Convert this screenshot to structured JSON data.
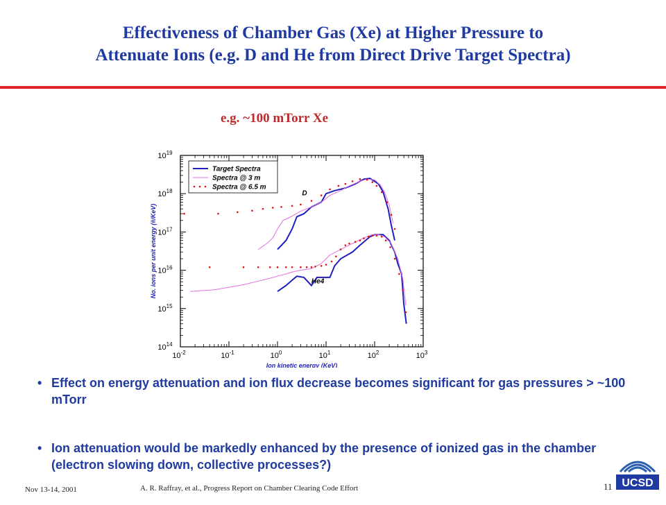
{
  "slide": {
    "title_line1": "Effectiveness of Chamber Gas (Xe) at Higher Pressure to",
    "title_line2": "Attenuate Ions (e.g. D and He from Direct Drive Target Spectra)",
    "subtitle": "e.g. ~100 mTorr Xe",
    "bullets": [
      "Effect on energy attenuation and ion flux decrease becomes significant for gas pressures > ~100 mTorr",
      "Ion attenuation would be markedly enhanced by the presence of ionized gas in the chamber (electron slowing down, collective processes?)"
    ],
    "bullet_symbol": "•",
    "footer_date": "Nov 13-14, 2001",
    "footer_author": "A. R. Raffray, et al., Progress Report on Chamber Clearing Code Effort",
    "page_number": "11",
    "logo_text": "UCSD"
  },
  "chart_data": {
    "type": "line",
    "x_scale": "log",
    "y_scale": "log",
    "xlim": [
      0.01,
      1000
    ],
    "ylim": [
      100000000000000.0,
      1e+19
    ],
    "xlabel": "Ion kinetic energy (KeV)",
    "ylabel": "No. ions per unit energy (#/KeV)",
    "x_ticks": [
      {
        "value": 0.01,
        "base": "10",
        "exp": "-2"
      },
      {
        "value": 0.1,
        "base": "10",
        "exp": "-1"
      },
      {
        "value": 1,
        "base": "10",
        "exp": "0"
      },
      {
        "value": 10,
        "base": "10",
        "exp": "1"
      },
      {
        "value": 100,
        "base": "10",
        "exp": "2"
      },
      {
        "value": 1000,
        "base": "10",
        "exp": "3"
      }
    ],
    "y_ticks": [
      {
        "value": 100000000000000.0,
        "base": "10",
        "exp": "14"
      },
      {
        "value": 1000000000000000.0,
        "base": "10",
        "exp": "15"
      },
      {
        "value": 1e+16,
        "base": "10",
        "exp": "16"
      },
      {
        "value": 1e+17,
        "base": "10",
        "exp": "17"
      },
      {
        "value": 1e+18,
        "base": "10",
        "exp": "18"
      },
      {
        "value": 1e+19,
        "base": "10",
        "exp": "19"
      }
    ],
    "legend": [
      {
        "name": "Target Spectra",
        "color": "#1f1fbf",
        "style": "thick-line"
      },
      {
        "name": "Spectra @ 3 m",
        "color": "#e070e0",
        "style": "thin-line"
      },
      {
        "name": "Spectra @ 6.5 m",
        "color": "#e01010",
        "style": "dots"
      }
    ],
    "legend_position": "top-left",
    "annotations": [
      {
        "text": "D",
        "x": 3.2,
        "y": 9e+17
      },
      {
        "text": "He4",
        "x": 5,
        "y": 4500000000000000.0
      }
    ],
    "series": [
      {
        "name": "Target Spectra",
        "group": "D",
        "color": "#1f1fbf",
        "x": [
          1,
          1.5,
          2,
          2.5,
          3.5,
          5,
          8,
          10,
          15,
          25,
          40,
          60,
          80,
          100,
          120,
          150,
          190,
          220,
          260
        ],
        "y": [
          3.5e+16,
          6e+16,
          1.2e+17,
          2.5e+17,
          3e+17,
          4.5e+17,
          6e+17,
          1e+18,
          1.2e+18,
          1.4e+18,
          1.8e+18,
          2.4e+18,
          2.5e+18,
          2.1e+18,
          1.8e+18,
          1.1e+18,
          4e+17,
          1.5e+17,
          6e+16
        ]
      },
      {
        "name": "Spectra @ 3 m",
        "group": "D",
        "color": "#e070e0",
        "x": [
          0.4,
          0.6,
          0.8,
          1,
          1.3,
          2,
          3,
          5,
          8,
          12,
          20,
          30,
          50,
          70,
          100,
          130,
          160,
          200,
          240
        ],
        "y": [
          3.5e+16,
          5e+16,
          7e+16,
          1.2e+17,
          2e+17,
          2.6e+17,
          3.5e+17,
          4.5e+17,
          6e+17,
          9e+17,
          1.2e+18,
          1.6e+18,
          2.1e+18,
          2.4e+18,
          2.3e+18,
          1.7e+18,
          1.1e+18,
          5e+17,
          1.7e+17
        ]
      },
      {
        "name": "Spectra @ 6.5 m",
        "group": "D",
        "color": "#e01010",
        "x": [
          0.012,
          0.06,
          0.15,
          0.3,
          0.5,
          0.8,
          1.2,
          2,
          3,
          5,
          8,
          12,
          18,
          25,
          35,
          50,
          70,
          90,
          110,
          140,
          180,
          220,
          260
        ],
        "y": [
          3e+17,
          3e+17,
          3.3e+17,
          3.6e+17,
          4e+17,
          4.3e+17,
          4.5e+17,
          4.8e+17,
          5.2e+17,
          6.5e+17,
          9e+17,
          1.3e+18,
          1.6e+18,
          1.8e+18,
          2.1e+18,
          2.4e+18,
          2.3e+18,
          2e+18,
          1.6e+18,
          1.1e+18,
          6e+17,
          2.8e+17,
          1.2e+17
        ]
      },
      {
        "name": "Target Spectra",
        "group": "He4",
        "color": "#1f1fbf",
        "x": [
          1,
          1.5,
          2,
          2.5,
          3.5,
          5,
          6.5,
          8.5,
          12,
          15,
          20,
          35,
          50,
          80,
          100,
          120,
          150,
          200,
          260,
          300,
          360,
          400,
          450
        ],
        "y": [
          2800000000000000.0,
          4000000000000000.0,
          5500000000000000.0,
          7000000000000000.0,
          6500000000000000.0,
          4000000000000000.0,
          6500000000000000.0,
          6500000000000000.0,
          6500000000000000.0,
          1.3e+16,
          2e+16,
          3e+16,
          4.5e+16,
          7.5e+16,
          8.5e+16,
          8.5e+16,
          8.5e+16,
          6e+16,
          3e+16,
          1.5e+16,
          8000000000000000.0,
          1300000000000000.0,
          400000000000000.0
        ]
      },
      {
        "name": "Spectra @ 3 m",
        "group": "He4",
        "color": "#e070e0",
        "x": [
          0.016,
          0.05,
          0.1,
          0.2,
          0.4,
          0.7,
          1,
          1.5,
          2,
          3,
          5,
          8,
          12,
          20,
          35,
          60,
          90,
          120,
          160,
          220,
          300,
          380,
          440
        ],
        "y": [
          2800000000000000.0,
          3100000000000000.0,
          3600000000000000.0,
          4200000000000000.0,
          5200000000000000.0,
          6200000000000000.0,
          7000000000000000.0,
          8000000000000000.0,
          9000000000000000.0,
          1e+16,
          1.1e+16,
          1.5e+16,
          2.5e+16,
          3.5e+16,
          5e+16,
          7e+16,
          8.5e+16,
          8.5e+16,
          7.5e+16,
          5e+16,
          2e+16,
          6000000000000000.0,
          1200000000000000.0
        ]
      },
      {
        "name": "Spectra @ 6.5 m",
        "group": "He4",
        "color": "#e01010",
        "x": [
          0.04,
          0.2,
          0.4,
          0.7,
          1,
          1.5,
          2,
          3,
          4,
          5,
          6,
          8,
          10,
          13,
          16,
          20,
          25,
          30,
          40,
          50,
          60,
          75,
          90,
          110,
          140,
          170,
          210,
          260,
          320,
          380,
          440
        ],
        "y": [
          1.2e+16,
          1.2e+16,
          1.2e+16,
          1.2e+16,
          1.2e+16,
          1.2e+16,
          1.2e+16,
          1.2e+16,
          1.2e+16,
          1.2e+16,
          1.25e+16,
          1.3e+16,
          1.4e+16,
          1.7e+16,
          2.3e+16,
          3.5e+16,
          4.5e+16,
          5e+16,
          5.5e+16,
          6e+16,
          6.8e+16,
          7.5e+16,
          8e+16,
          8e+16,
          7.5e+16,
          6e+16,
          4e+16,
          2e+16,
          8000000000000000.0,
          3000000000000000.0,
          800000000000000.0
        ]
      }
    ]
  }
}
